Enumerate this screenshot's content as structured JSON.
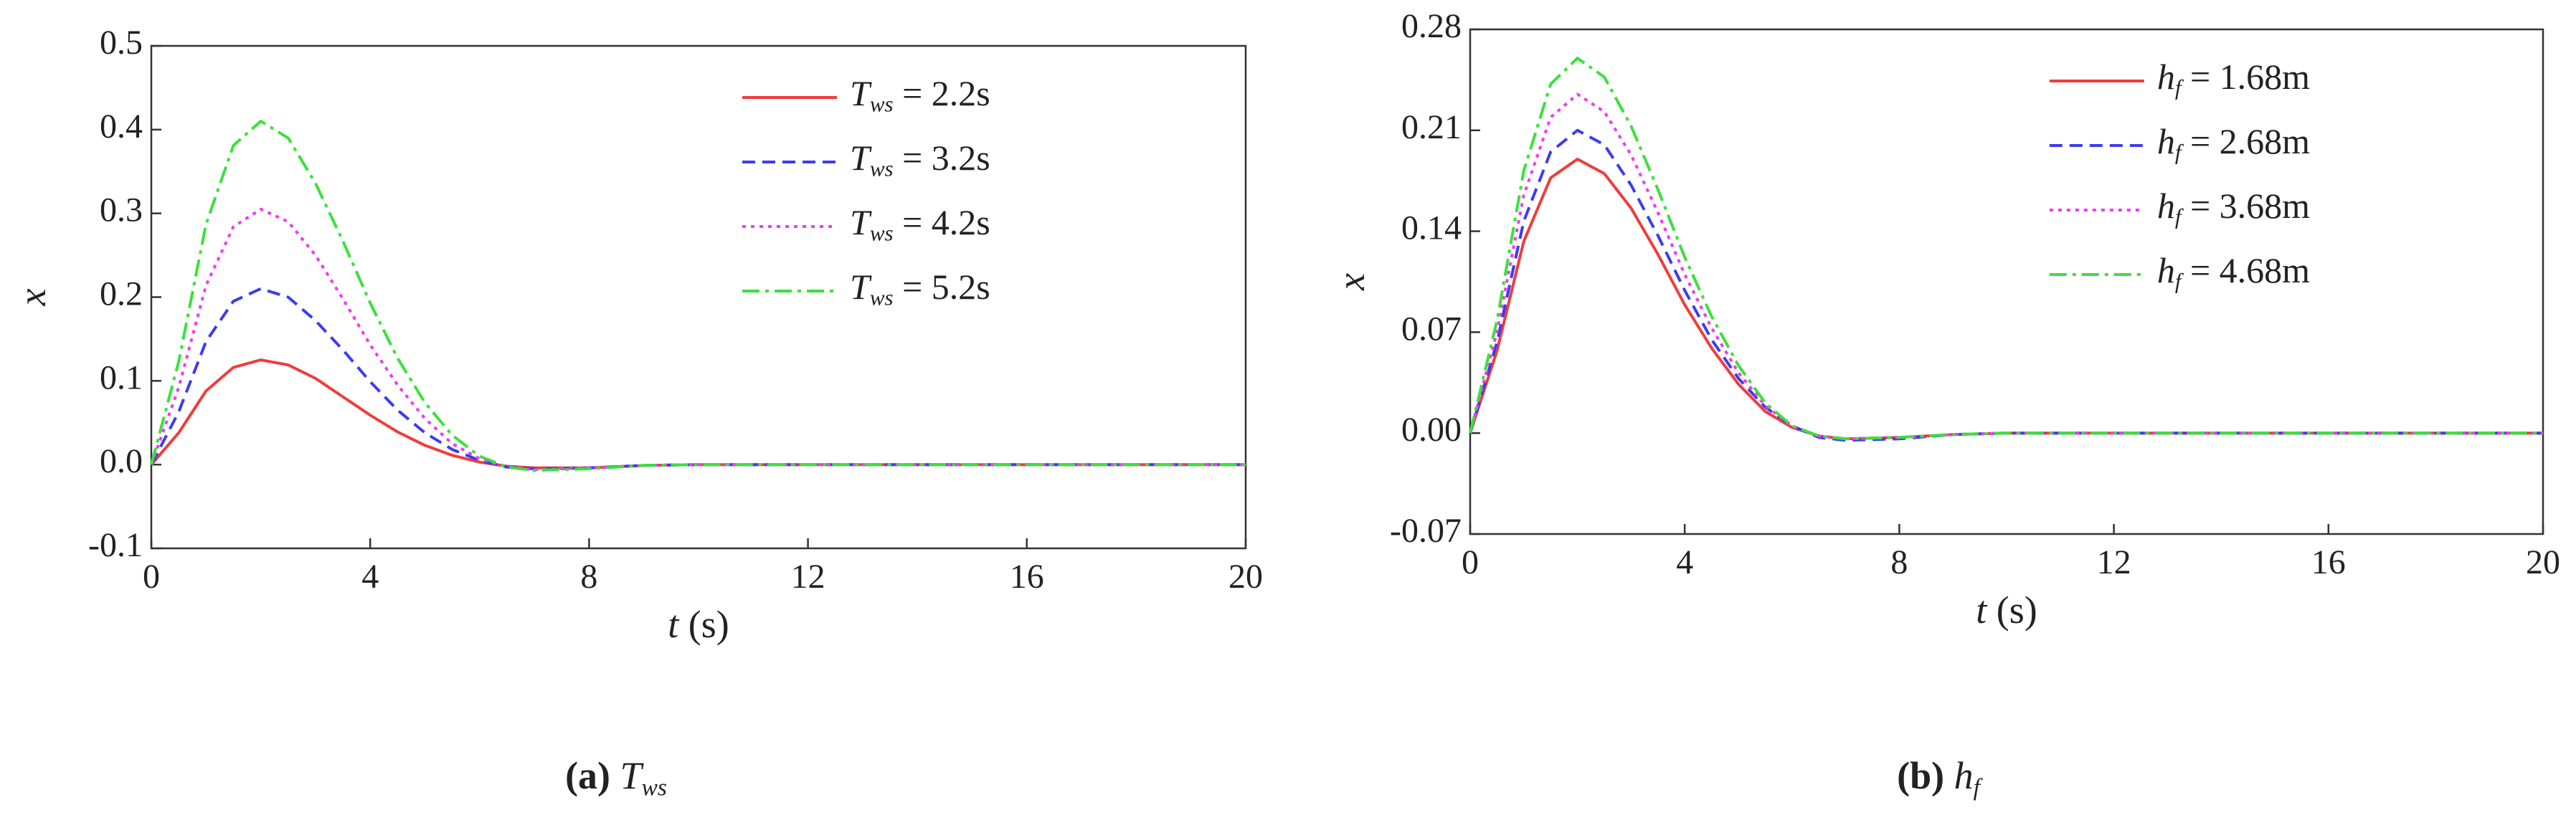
{
  "chart_data": [
    {
      "type": "line",
      "caption": "(a) Tws",
      "xlabel": "t (s)",
      "ylabel": "x",
      "legend": "upper right",
      "x": [
        0,
        0.5,
        1,
        1.5,
        2,
        2.5,
        3,
        3.5,
        4,
        4.5,
        5,
        5.5,
        6,
        6.5,
        7,
        8,
        9,
        10,
        12,
        14,
        16,
        18,
        20
      ],
      "xlim": [
        0,
        20
      ],
      "xticks": [
        0,
        4,
        8,
        12,
        16,
        20
      ],
      "ylim": [
        -0.1,
        0.5
      ],
      "yticks": [
        -0.1,
        {
          "value": 0,
          "label": "0.0"
        },
        0.1,
        0.2,
        0.3,
        0.4,
        0.5
      ],
      "series": [
        {
          "name": "Tws = 2.2s",
          "color": "#f03c3c",
          "style": "solid",
          "values": [
            0,
            0.038,
            0.088,
            0.116,
            0.125,
            0.119,
            0.103,
            0.081,
            0.059,
            0.039,
            0.023,
            0.011,
            0.003,
            -0.002,
            -0.004,
            -0.004,
            -0.001,
            0,
            0,
            0,
            0,
            0,
            0
          ]
        },
        {
          "name": "Tws = 3.2s",
          "color": "#3c3cf0",
          "style": "dashed",
          "values": [
            0,
            0.063,
            0.147,
            0.195,
            0.21,
            0.2,
            0.172,
            0.137,
            0.099,
            0.065,
            0.038,
            0.018,
            0.005,
            -0.003,
            -0.005,
            -0.004,
            -0.001,
            0,
            0,
            0,
            0,
            0,
            0
          ]
        },
        {
          "name": "Tws = 4.2s",
          "color": "#f03cf0",
          "style": "dotted",
          "values": [
            0,
            0.092,
            0.214,
            0.284,
            0.305,
            0.29,
            0.25,
            0.198,
            0.143,
            0.095,
            0.055,
            0.025,
            0.007,
            -0.003,
            -0.006,
            -0.004,
            -0.001,
            0,
            0,
            0,
            0,
            0,
            0
          ]
        },
        {
          "name": "Tws = 5.2s",
          "color": "#3ce03c",
          "style": "dashdot",
          "values": [
            0,
            0.123,
            0.287,
            0.381,
            0.41,
            0.39,
            0.336,
            0.267,
            0.193,
            0.127,
            0.074,
            0.035,
            0.01,
            -0.003,
            -0.007,
            -0.005,
            -0.001,
            0,
            0,
            0,
            0,
            0,
            0
          ]
        }
      ]
    },
    {
      "type": "line",
      "caption": "(b) hf",
      "xlabel": "t (s)",
      "ylabel": "x",
      "legend": "upper right",
      "x": [
        0,
        0.5,
        1,
        1.5,
        2,
        2.5,
        3,
        3.5,
        4,
        4.5,
        5,
        5.5,
        6,
        6.5,
        7,
        8,
        9,
        10,
        12,
        14,
        16,
        18,
        20
      ],
      "xlim": [
        0,
        20
      ],
      "xticks": [
        0,
        4,
        8,
        12,
        16,
        20
      ],
      "ylim": [
        -0.07,
        0.28
      ],
      "yticks": [
        -0.07,
        {
          "value": 0,
          "label": "0.00"
        },
        0.07,
        0.14,
        0.21,
        0.28
      ],
      "series": [
        {
          "name": "hf = 1.68m",
          "color": "#f03c3c",
          "style": "solid",
          "values": [
            0,
            0.057,
            0.133,
            0.177,
            0.19,
            0.18,
            0.156,
            0.124,
            0.089,
            0.059,
            0.034,
            0.015,
            0.004,
            -0.002,
            -0.004,
            -0.003,
            -0.001,
            0,
            0,
            0,
            0,
            0,
            0
          ]
        },
        {
          "name": "hf = 2.68m",
          "color": "#3c3cf0",
          "style": "dashed",
          "values": [
            0,
            0.063,
            0.147,
            0.195,
            0.21,
            0.2,
            0.172,
            0.137,
            0.099,
            0.065,
            0.038,
            0.018,
            0.005,
            -0.003,
            -0.005,
            -0.004,
            -0.001,
            0,
            0,
            0,
            0,
            0,
            0
          ]
        },
        {
          "name": "hf = 3.68m",
          "color": "#f03cf0",
          "style": "dotted",
          "values": [
            0,
            0.07,
            0.165,
            0.219,
            0.235,
            0.223,
            0.193,
            0.153,
            0.11,
            0.073,
            0.042,
            0.019,
            0.005,
            -0.002,
            -0.004,
            -0.003,
            -0.001,
            0,
            0,
            0,
            0,
            0,
            0
          ]
        },
        {
          "name": "hf = 4.68m",
          "color": "#3ce03c",
          "style": "dashdot",
          "values": [
            0,
            0.078,
            0.182,
            0.242,
            0.26,
            0.247,
            0.213,
            0.169,
            0.122,
            0.081,
            0.047,
            0.021,
            0.005,
            -0.002,
            -0.004,
            -0.003,
            -0.001,
            0,
            0,
            0,
            0,
            0,
            0
          ]
        }
      ]
    }
  ]
}
